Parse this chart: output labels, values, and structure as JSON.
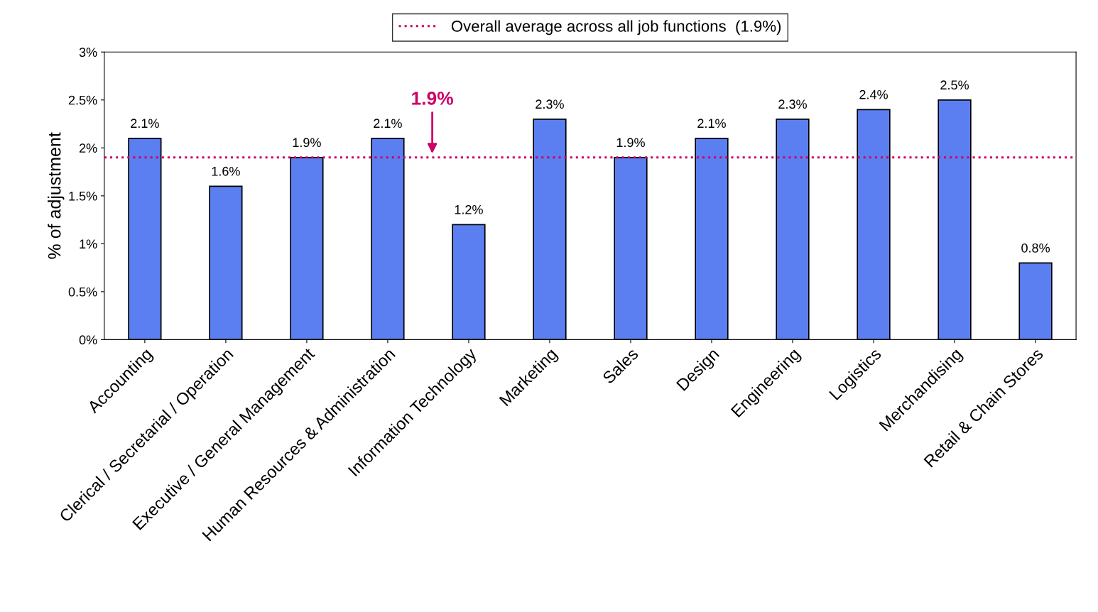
{
  "chart_data": {
    "type": "bar",
    "ylabel": "% of adjustment",
    "categories": [
      "Accounting",
      "Clerical / Secretarial / Operation",
      "Executive / General Management",
      "Human Resources & Administration",
      "Information Technology",
      "Marketing",
      "Sales",
      "Design",
      "Engineering",
      "Logistics",
      "Merchandising",
      "Retail & Chain Stores"
    ],
    "values": [
      2.1,
      1.6,
      1.9,
      2.1,
      1.2,
      2.3,
      1.9,
      2.1,
      2.3,
      2.4,
      2.5,
      0.8
    ],
    "value_labels": [
      "2.1%",
      "1.6%",
      "1.9%",
      "2.1%",
      "1.2%",
      "2.3%",
      "1.9%",
      "2.1%",
      "2.3%",
      "2.4%",
      "2.5%",
      "0.8%"
    ],
    "color": "#5b7ff0",
    "ylim": [
      0,
      3
    ],
    "yticks": [
      {
        "value": 0,
        "label": "0%"
      },
      {
        "value": 0.5,
        "label": "0.5%"
      },
      {
        "value": 1,
        "label": "1%"
      },
      {
        "value": 1.5,
        "label": "1.5%"
      },
      {
        "value": 2,
        "label": "2%"
      },
      {
        "value": 2.5,
        "label": "2.5%"
      },
      {
        "value": 3,
        "label": "3%"
      }
    ],
    "ref_lines": [
      {
        "axis": "y",
        "value": 1.9,
        "label": "Overall average across all job functions  (1.9%)",
        "color": "#cc0066",
        "line_style": "dotted"
      }
    ],
    "annotations": [
      {
        "text": "1.9%",
        "y": 1.9
      }
    ],
    "grid": false,
    "legend": "top"
  }
}
